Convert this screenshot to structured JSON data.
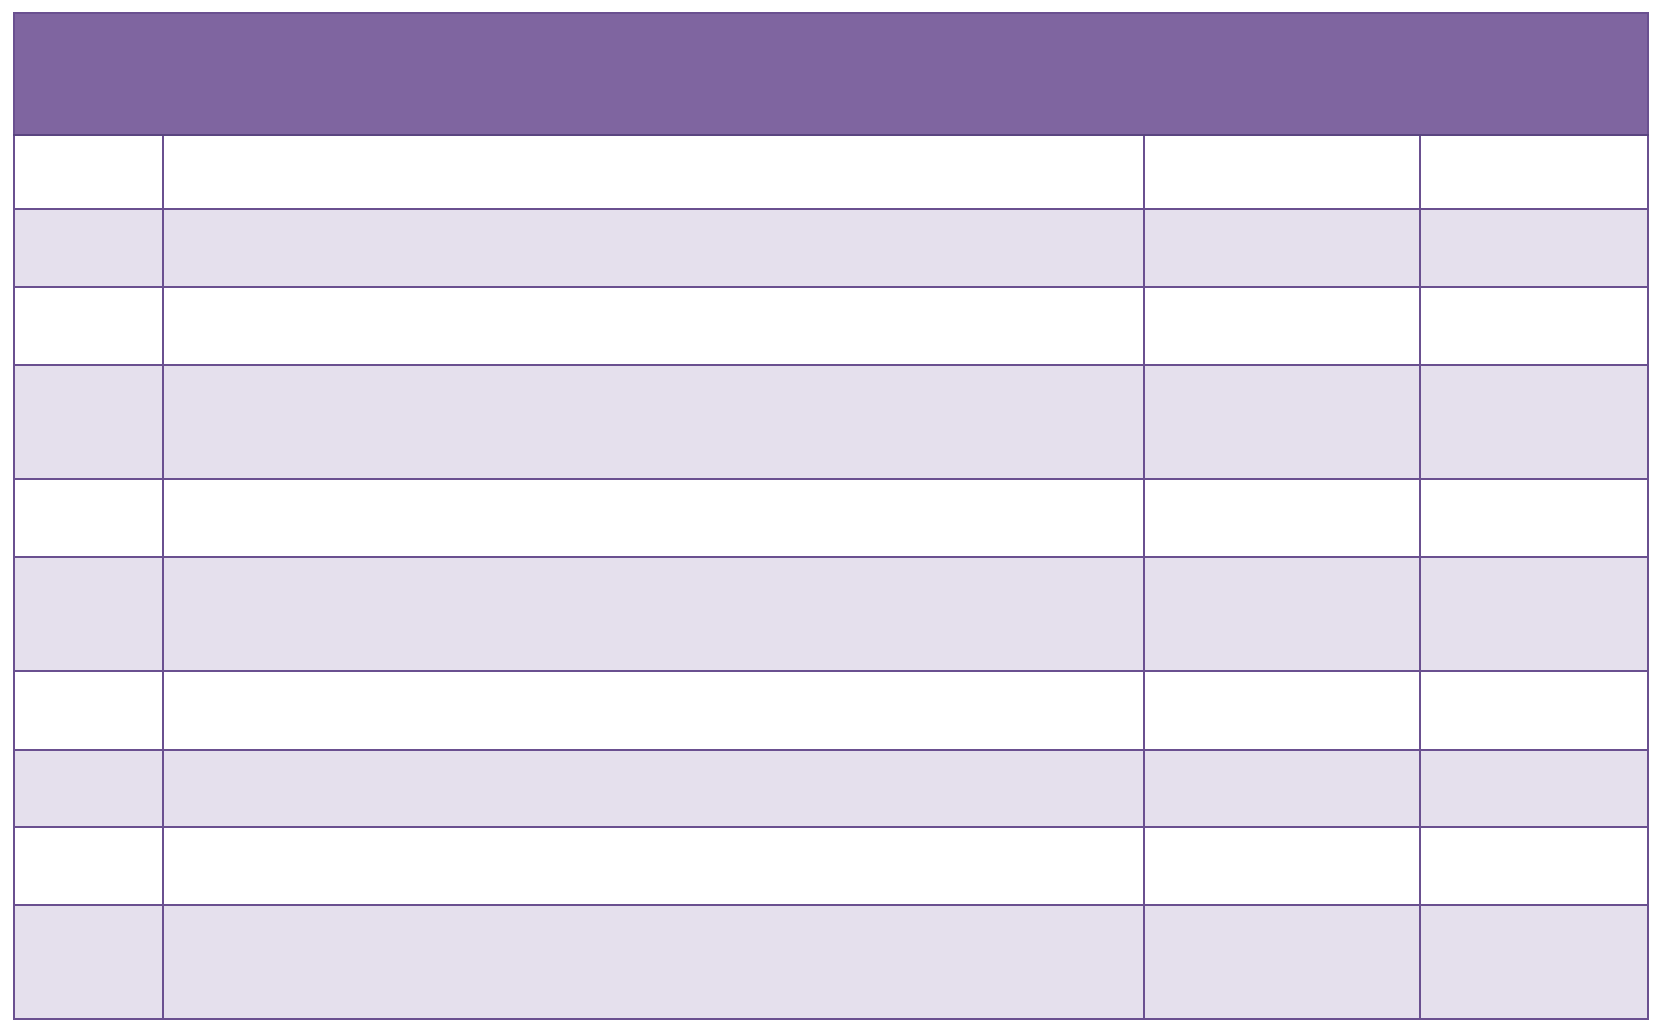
{
  "colors": {
    "header_bg": "#7f65a0",
    "row_alt_bg": "#e5e0ed",
    "row_bg": "#ffffff",
    "border": "#6a5090"
  },
  "table": {
    "header": "",
    "rows": [
      [
        "",
        "",
        "",
        ""
      ],
      [
        "",
        "",
        "",
        ""
      ],
      [
        "",
        "",
        "",
        ""
      ],
      [
        "",
        "",
        "",
        ""
      ],
      [
        "",
        "",
        "",
        ""
      ],
      [
        "",
        "",
        "",
        ""
      ],
      [
        "",
        "",
        "",
        ""
      ],
      [
        "",
        "",
        "",
        ""
      ],
      [
        "",
        "",
        "",
        ""
      ],
      [
        "",
        "",
        "",
        ""
      ]
    ]
  }
}
